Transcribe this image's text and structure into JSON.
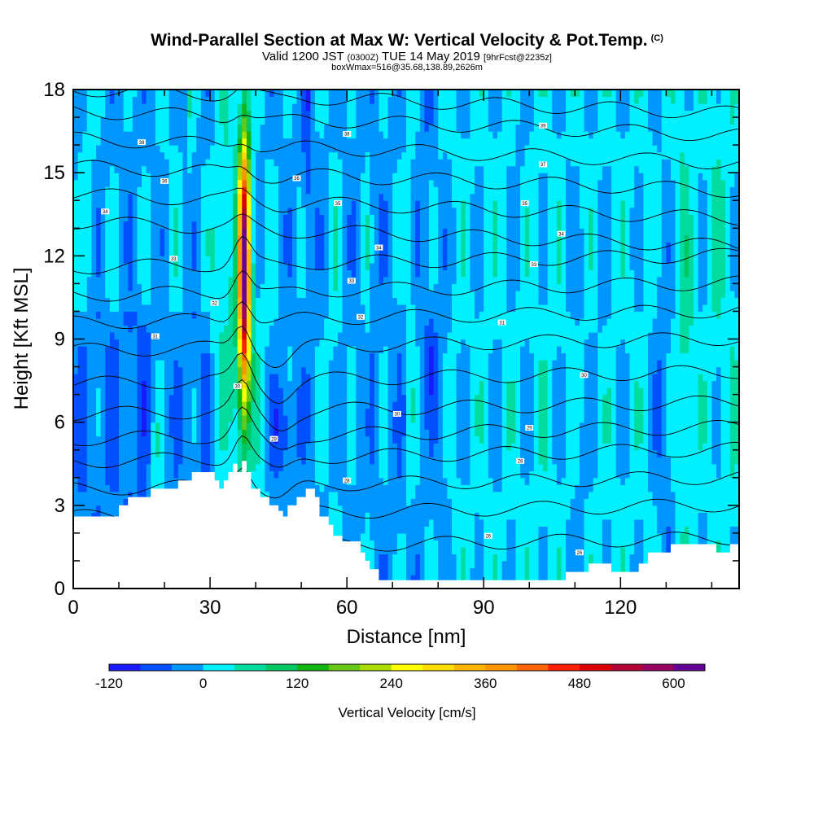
{
  "title": {
    "main": "Wind-Parallel Section at Max W: Vertical Velocity & Pot.Temp.",
    "copyright": "(C)",
    "valid_prefix": "Valid 1200 JST",
    "zulu": "(0300Z)",
    "valid_date": "TUE 14 May 2019",
    "forecast": "[9hrFcst@2235z]",
    "box": "boxWmax=516@35.68,138.89,2626m"
  },
  "chart_data": {
    "type": "heatmap",
    "xlabel": "Distance [nm]",
    "ylabel": "Height [Kft MSL]",
    "xlim": [
      0,
      146
    ],
    "ylim": [
      0,
      18
    ],
    "x_ticks": [
      0,
      30,
      60,
      90,
      120
    ],
    "y_ticks": [
      0,
      3,
      6,
      9,
      12,
      15,
      18
    ],
    "colorbar": {
      "label": "Vertical Velocity [cm/s]",
      "tick_values": [
        -120,
        0,
        120,
        240,
        360,
        480,
        600
      ],
      "tick_labels": [
        "-120",
        "0",
        "120",
        "240",
        "360",
        "480",
        "600"
      ],
      "levels": [
        -120,
        -80,
        -40,
        0,
        40,
        80,
        120,
        160,
        200,
        240,
        280,
        320,
        360,
        400,
        440,
        480,
        520,
        560,
        600,
        640
      ],
      "colors": [
        "#1a1aff",
        "#0050ff",
        "#0096ff",
        "#00f0ff",
        "#00dca0",
        "#00c864",
        "#14b414",
        "#64c814",
        "#aadc00",
        "#ffff00",
        "#ffdc00",
        "#ffb400",
        "#ff9600",
        "#ff6400",
        "#ff1e00",
        "#dc0000",
        "#b40032",
        "#960064",
        "#640096"
      ]
    },
    "terrain_kft": [
      [
        0,
        2.6
      ],
      [
        10,
        2.6
      ],
      [
        10,
        3.0
      ],
      [
        12,
        3.0
      ],
      [
        12,
        3.3
      ],
      [
        17,
        3.3
      ],
      [
        17,
        3.6
      ],
      [
        23,
        3.6
      ],
      [
        23,
        3.9
      ],
      [
        26,
        3.9
      ],
      [
        26,
        4.2
      ],
      [
        31,
        4.2
      ],
      [
        31,
        3.9
      ],
      [
        32,
        3.9
      ],
      [
        32,
        3.6
      ],
      [
        33,
        3.6
      ],
      [
        33,
        3.9
      ],
      [
        34,
        3.9
      ],
      [
        34,
        4.2
      ],
      [
        35,
        4.2
      ],
      [
        35,
        4.5
      ],
      [
        36,
        4.5
      ],
      [
        36,
        4.2
      ],
      [
        37,
        4.2
      ],
      [
        37,
        4.6
      ],
      [
        38,
        4.6
      ],
      [
        38,
        4.2
      ],
      [
        39,
        4.2
      ],
      [
        39,
        3.6
      ],
      [
        41,
        3.6
      ],
      [
        41,
        3.3
      ],
      [
        43,
        3.3
      ],
      [
        43,
        3.0
      ],
      [
        45,
        3.0
      ],
      [
        45,
        2.8
      ],
      [
        46,
        2.8
      ],
      [
        46,
        2.6
      ],
      [
        47,
        2.6
      ],
      [
        47,
        3.0
      ],
      [
        49,
        3.0
      ],
      [
        49,
        3.3
      ],
      [
        51,
        3.3
      ],
      [
        51,
        3.6
      ],
      [
        53,
        3.6
      ],
      [
        53,
        3.3
      ],
      [
        54,
        3.3
      ],
      [
        54,
        2.6
      ],
      [
        56,
        2.6
      ],
      [
        56,
        2.3
      ],
      [
        57,
        2.3
      ],
      [
        57,
        1.9
      ],
      [
        59,
        1.9
      ],
      [
        59,
        1.7
      ],
      [
        61,
        1.7
      ],
      [
        61,
        1.7
      ],
      [
        63,
        1.7
      ],
      [
        63,
        1.3
      ],
      [
        64,
        1.3
      ],
      [
        64,
        1.0
      ],
      [
        65,
        1.0
      ],
      [
        65,
        0.7
      ],
      [
        67,
        0.7
      ],
      [
        67,
        0.3
      ],
      [
        108,
        0.3
      ],
      [
        108,
        0.6
      ],
      [
        113,
        0.6
      ],
      [
        113,
        0.9
      ],
      [
        118,
        0.9
      ],
      [
        118,
        0.6
      ],
      [
        124,
        0.6
      ],
      [
        124,
        0.9
      ],
      [
        126,
        0.9
      ],
      [
        126,
        1.3
      ],
      [
        131,
        1.3
      ],
      [
        131,
        1.6
      ],
      [
        141,
        1.6
      ],
      [
        141,
        1.3
      ],
      [
        144,
        1.3
      ],
      [
        144,
        1.6
      ],
      [
        146,
        1.6
      ]
    ],
    "isentrope_labels": [
      {
        "x": 15,
        "y": 16.1,
        "text": "38"
      },
      {
        "x": 20,
        "y": 14.7,
        "text": "36"
      },
      {
        "x": 7,
        "y": 13.6,
        "text": "34"
      },
      {
        "x": 22,
        "y": 11.9,
        "text": "33"
      },
      {
        "x": 31,
        "y": 10.3,
        "text": "32"
      },
      {
        "x": 18,
        "y": 9.1,
        "text": "31"
      },
      {
        "x": 36,
        "y": 7.3,
        "text": "30"
      },
      {
        "x": 44,
        "y": 5.4,
        "text": "29"
      },
      {
        "x": 60,
        "y": 3.9,
        "text": "28"
      },
      {
        "x": 60,
        "y": 16.4,
        "text": "38"
      },
      {
        "x": 49,
        "y": 14.8,
        "text": "36"
      },
      {
        "x": 58,
        "y": 13.9,
        "text": "35"
      },
      {
        "x": 67,
        "y": 12.3,
        "text": "34"
      },
      {
        "x": 61,
        "y": 11.1,
        "text": "33"
      },
      {
        "x": 63,
        "y": 9.8,
        "text": "32"
      },
      {
        "x": 71,
        "y": 6.3,
        "text": "30"
      },
      {
        "x": 103,
        "y": 16.7,
        "text": "39"
      },
      {
        "x": 103,
        "y": 15.3,
        "text": "37"
      },
      {
        "x": 99,
        "y": 13.9,
        "text": "35"
      },
      {
        "x": 107,
        "y": 12.8,
        "text": "34"
      },
      {
        "x": 101,
        "y": 11.7,
        "text": "33"
      },
      {
        "x": 94,
        "y": 9.6,
        "text": "31"
      },
      {
        "x": 112,
        "y": 7.7,
        "text": "30"
      },
      {
        "x": 100,
        "y": 5.8,
        "text": "29"
      },
      {
        "x": 98,
        "y": 4.6,
        "text": "28"
      },
      {
        "x": 91,
        "y": 1.9,
        "text": "26"
      },
      {
        "x": 111,
        "y": 1.3,
        "text": "26"
      }
    ]
  }
}
